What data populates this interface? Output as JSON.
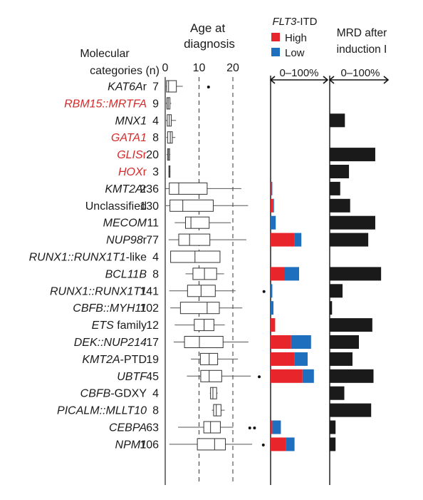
{
  "chart_data": [
    {
      "type": "boxplot",
      "panel": "age_at_diagnosis",
      "title": "Age at diagnosis",
      "row_header_line1": "Molecular",
      "row_header_line2": "categories (n)",
      "xlim": [
        0,
        30
      ],
      "xticks": [
        0,
        10,
        20
      ],
      "reference_lines": [
        10,
        20
      ],
      "rows": [
        {
          "label": "KAT6Ar",
          "italic": "KAT6A",
          "suffix": "r",
          "color": "#1a1a1a",
          "n": 7,
          "whisker_low": 0.2,
          "q1": 0.4,
          "median": 1.0,
          "q3": 3.3,
          "whisker_high": 5.2,
          "outliers": [
            12.8
          ]
        },
        {
          "label": "RBM15::MRTFA",
          "italic": "RBM15::MRTFA",
          "suffix": "",
          "color": "#d42b2b",
          "n": 9,
          "whisker_low": 0.2,
          "q1": 0.5,
          "median": 0.9,
          "q3": 1.4,
          "whisker_high": 1.8,
          "outliers": []
        },
        {
          "label": "MNX1",
          "italic": "MNX1",
          "suffix": "",
          "color": "#1a1a1a",
          "n": 4,
          "whisker_low": 0.2,
          "q1": 0.6,
          "median": 1.2,
          "q3": 1.8,
          "whisker_high": 3.2,
          "outliers": []
        },
        {
          "label": "GATA1",
          "italic": "GATA1",
          "suffix": "",
          "color": "#d42b2b",
          "n": 8,
          "whisker_low": 0.3,
          "q1": 0.7,
          "median": 1.5,
          "q3": 2.1,
          "whisker_high": 3.0,
          "outliers": []
        },
        {
          "label": "GLISr",
          "italic": "GLIS",
          "suffix": "r",
          "color": "#d42b2b",
          "n": 20,
          "whisker_low": 0.4,
          "q1": 0.7,
          "median": 1.0,
          "q3": 1.3,
          "whisker_high": 1.5,
          "outliers": []
        },
        {
          "label": "HOXr",
          "italic": "HOX",
          "suffix": "r",
          "color": "#d42b2b",
          "n": 3,
          "whisker_low": 1.0,
          "q1": 1.1,
          "median": 1.2,
          "q3": 1.4,
          "whisker_high": 1.5,
          "outliers": []
        },
        {
          "label": "KMT2Ar",
          "italic": "KMT2A",
          "suffix": "r",
          "color": "#1a1a1a",
          "n": 236,
          "whisker_low": 0.1,
          "q1": 1.2,
          "median": 4.0,
          "q3": 12.4,
          "whisker_high": 22.5,
          "outliers": []
        },
        {
          "label": "Unclassified",
          "italic": "",
          "suffix": "Unclassified",
          "color": "#1a1a1a",
          "n": 130,
          "whisker_low": 0.2,
          "q1": 1.4,
          "median": 5.2,
          "q3": 14.2,
          "whisker_high": 24.5,
          "outliers": []
        },
        {
          "label": "MECOM",
          "italic": "MECOM",
          "suffix": "",
          "color": "#1a1a1a",
          "n": 11,
          "whisker_low": 2.8,
          "q1": 6.0,
          "median": 7.6,
          "q3": 13.0,
          "whisker_high": 19.4,
          "outliers": []
        },
        {
          "label": "NUP98r",
          "italic": "NUP98",
          "suffix": "r",
          "color": "#1a1a1a",
          "n": 77,
          "whisker_low": 1.0,
          "q1": 4.0,
          "median": 7.2,
          "q3": 13.2,
          "whisker_high": 24.0,
          "outliers": []
        },
        {
          "label": "RUNX1::RUNX1T1-like",
          "italic": "RUNX1::RUNX1T1",
          "suffix": "-like",
          "color": "#1a1a1a",
          "n": 4,
          "whisker_low": 1.6,
          "q1": 1.6,
          "median": 8.8,
          "q3": 16.2,
          "whisker_high": 16.2,
          "outliers": []
        },
        {
          "label": "BCL11B",
          "italic": "BCL11B",
          "suffix": "",
          "color": "#1a1a1a",
          "n": 8,
          "whisker_low": 6.0,
          "q1": 8.2,
          "median": 11.6,
          "q3": 15.2,
          "whisker_high": 17.4,
          "outliers": []
        },
        {
          "label": "RUNX1::RUNX1T1",
          "italic": "RUNX1::RUNX1T1",
          "suffix": "",
          "color": "#1a1a1a",
          "n": 141,
          "whisker_low": 1.2,
          "q1": 6.6,
          "median": 10.6,
          "q3": 14.8,
          "whisker_high": 20.8,
          "outliers": [
            29.2
          ]
        },
        {
          "label": "CBFB::MYH11",
          "italic": "CBFB::MYH11",
          "suffix": "",
          "color": "#1a1a1a",
          "n": 102,
          "whisker_low": 1.5,
          "q1": 4.5,
          "median": 12.4,
          "q3": 16.0,
          "whisker_high": 22.8,
          "outliers": []
        },
        {
          "label": "ETS family",
          "italic": "ETS",
          "suffix": " family",
          "color": "#1a1a1a",
          "n": 12,
          "whisker_low": 2.8,
          "q1": 8.6,
          "median": 11.5,
          "q3": 14.4,
          "whisker_high": 17.6,
          "outliers": []
        },
        {
          "label": "DEK::NUP214",
          "italic": "DEK::NUP214",
          "suffix": "",
          "color": "#1a1a1a",
          "n": 17,
          "whisker_low": 2.5,
          "q1": 5.7,
          "median": 10.1,
          "q3": 17.1,
          "whisker_high": 24.6,
          "outliers": []
        },
        {
          "label": "KMT2A-PTD",
          "italic": "KMT2A",
          "suffix": "-PTD",
          "color": "#1a1a1a",
          "n": 19,
          "whisker_low": 7.6,
          "q1": 10.4,
          "median": 13.0,
          "q3": 15.5,
          "whisker_high": 21.5,
          "outliers": []
        },
        {
          "label": "UBTF",
          "italic": "UBTF",
          "suffix": "",
          "color": "#1a1a1a",
          "n": 45,
          "whisker_low": 6.4,
          "q1": 10.5,
          "median": 13.0,
          "q3": 16.7,
          "whisker_high": 25.3,
          "outliers": [
            27.8
          ]
        },
        {
          "label": "CBFB-GDXY",
          "italic": "CBFB",
          "suffix": "-GDXY",
          "color": "#1a1a1a",
          "n": 4,
          "whisker_low": 13.2,
          "q1": 13.4,
          "median": 14.1,
          "q3": 15.2,
          "whisker_high": 15.5,
          "outliers": []
        },
        {
          "label": "PICALM::MLLT10",
          "italic": "PICALM::MLLT10",
          "suffix": "",
          "color": "#1a1a1a",
          "n": 8,
          "whisker_low": 13.8,
          "q1": 14.3,
          "median": 15.1,
          "q3": 16.5,
          "whisker_high": 17.6,
          "outliers": []
        },
        {
          "label": "CEBPA",
          "italic": "CEBPA",
          "suffix": "",
          "color": "#1a1a1a",
          "n": 63,
          "whisker_low": 3.8,
          "q1": 11.4,
          "median": 13.4,
          "q3": 16.3,
          "whisker_high": 20.1,
          "outliers": [
            25.0,
            26.4
          ]
        },
        {
          "label": "NPM1",
          "italic": "NPM1",
          "suffix": "",
          "color": "#1a1a1a",
          "n": 106,
          "whisker_low": 1.2,
          "q1": 9.5,
          "median": 14.6,
          "q3": 17.8,
          "whisker_high": 25.7,
          "outliers": [
            29.0
          ]
        }
      ]
    },
    {
      "type": "bar",
      "stacked": true,
      "panel": "flt3_itd",
      "title_italic": "FLT3",
      "title_rest": "-ITD",
      "axis_label": "0–100%",
      "xlim": [
        0,
        100
      ],
      "categories": [
        "KAT6Ar",
        "RBM15::MRTFA",
        "MNX1",
        "GATA1",
        "GLISr",
        "HOXr",
        "KMT2Ar",
        "Unclassified",
        "MECOM",
        "NUP98r",
        "RUNX1::RUNX1T1-like",
        "BCL11B",
        "RUNX1::RUNX1T1",
        "CBFB::MYH11",
        "ETS family",
        "DEK::NUP214",
        "KMT2A-PTD",
        "UBTF",
        "CBFB-GDXY",
        "PICALM::MLLT10",
        "CEBPA",
        "NPM1"
      ],
      "series": [
        {
          "name": "High",
          "color": "#e8252a",
          "values": [
            0,
            0,
            0,
            0,
            0,
            0,
            1.0,
            4.0,
            0,
            42,
            0,
            25,
            0,
            0,
            8.0,
            36,
            42,
            56,
            0,
            0,
            3,
            27
          ]
        },
        {
          "name": "Low",
          "color": "#1e6fbe",
          "values": [
            0,
            0,
            0,
            0,
            0,
            0,
            2.0,
            2.0,
            9.0,
            12,
            0,
            25,
            3.0,
            5.0,
            0,
            35,
            23,
            20,
            0,
            0,
            15,
            15
          ]
        }
      ]
    },
    {
      "type": "bar",
      "panel": "mrd",
      "title_line1": "MRD after",
      "title_line2": "induction I",
      "axis_label": "0–100%",
      "xlim": [
        0,
        100
      ],
      "color": "#1a1a1a",
      "categories": [
        "KAT6Ar",
        "RBM15::MRTFA",
        "MNX1",
        "GATA1",
        "GLISr",
        "HOXr",
        "KMT2Ar",
        "Unclassified",
        "MECOM",
        "NUP98r",
        "RUNX1::RUNX1T1-like",
        "BCL11B",
        "RUNX1::RUNX1T1",
        "CBFB::MYH11",
        "ETS family",
        "DEK::NUP214",
        "KMT2A-PTD",
        "UBTF",
        "CBFB-GDXY",
        "PICALM::MLLT10",
        "CEBPA",
        "NPM1"
      ],
      "values": [
        0,
        0,
        26,
        0,
        78,
        33,
        18,
        35,
        78,
        66,
        0,
        88,
        22,
        4,
        73,
        50,
        39,
        75,
        25,
        71,
        10,
        10
      ]
    }
  ]
}
